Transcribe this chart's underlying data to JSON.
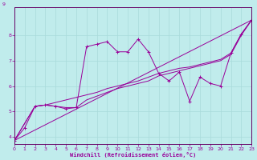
{
  "xlabel": "Windchill (Refroidissement éolien,°C)",
  "bg_color": "#c0ecec",
  "grid_color": "#a8dada",
  "line_color": "#990099",
  "xlim": [
    0,
    23
  ],
  "ylim": [
    3.7,
    9.1
  ],
  "yticks": [
    4,
    5,
    6,
    7,
    8
  ],
  "ytick_labels": [
    "4",
    "5",
    "6",
    "7",
    "8"
  ],
  "xticks": [
    0,
    1,
    2,
    3,
    4,
    5,
    6,
    7,
    8,
    9,
    10,
    11,
    12,
    13,
    14,
    15,
    16,
    17,
    18,
    19,
    20,
    21,
    22,
    23
  ],
  "series1": [
    [
      0,
      3.85
    ],
    [
      1,
      4.35
    ],
    [
      2,
      5.2
    ],
    [
      3,
      5.25
    ],
    [
      4,
      5.2
    ],
    [
      5,
      5.1
    ],
    [
      6,
      5.15
    ],
    [
      7,
      7.55
    ],
    [
      8,
      7.65
    ],
    [
      9,
      7.75
    ],
    [
      10,
      7.35
    ],
    [
      11,
      7.35
    ],
    [
      12,
      7.85
    ],
    [
      13,
      7.35
    ],
    [
      14,
      6.5
    ],
    [
      15,
      6.2
    ],
    [
      16,
      6.55
    ],
    [
      17,
      5.4
    ],
    [
      18,
      6.35
    ],
    [
      19,
      6.1
    ],
    [
      20,
      6.0
    ],
    [
      21,
      7.3
    ],
    [
      22,
      8.05
    ],
    [
      23,
      8.6
    ]
  ],
  "series2": [
    [
      0,
      3.85
    ],
    [
      2,
      5.2
    ],
    [
      3,
      5.25
    ],
    [
      4,
      5.35
    ],
    [
      5,
      5.45
    ],
    [
      6,
      5.55
    ],
    [
      7,
      5.65
    ],
    [
      8,
      5.75
    ],
    [
      9,
      5.9
    ],
    [
      10,
      6.0
    ],
    [
      11,
      6.1
    ],
    [
      12,
      6.2
    ],
    [
      13,
      6.35
    ],
    [
      14,
      6.5
    ],
    [
      15,
      6.6
    ],
    [
      16,
      6.7
    ],
    [
      17,
      6.75
    ],
    [
      18,
      6.85
    ],
    [
      19,
      6.95
    ],
    [
      20,
      7.05
    ],
    [
      21,
      7.3
    ],
    [
      22,
      8.05
    ],
    [
      23,
      8.6
    ]
  ],
  "series3": [
    [
      0,
      3.85
    ],
    [
      2,
      5.2
    ],
    [
      3,
      5.25
    ],
    [
      4,
      5.2
    ],
    [
      5,
      5.15
    ],
    [
      6,
      5.15
    ],
    [
      7,
      5.45
    ],
    [
      8,
      5.6
    ],
    [
      9,
      5.75
    ],
    [
      10,
      5.9
    ],
    [
      11,
      6.0
    ],
    [
      12,
      6.1
    ],
    [
      13,
      6.2
    ],
    [
      14,
      6.4
    ],
    [
      15,
      6.5
    ],
    [
      16,
      6.6
    ],
    [
      17,
      6.7
    ],
    [
      18,
      6.8
    ],
    [
      19,
      6.9
    ],
    [
      20,
      7.0
    ],
    [
      21,
      7.25
    ],
    [
      22,
      8.0
    ],
    [
      23,
      8.6
    ]
  ],
  "series4": [
    [
      0,
      3.85
    ],
    [
      23,
      8.6
    ]
  ]
}
